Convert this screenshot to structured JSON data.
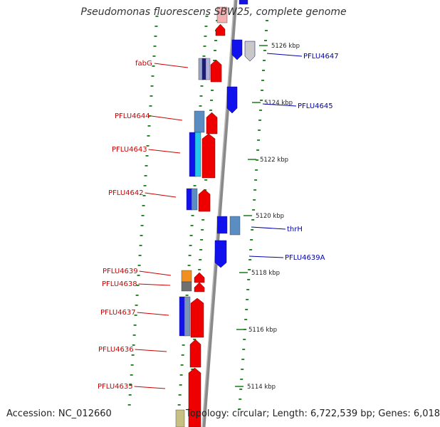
{
  "title": "Pseudomonas fluorescens SBW25, complete genome",
  "footer": {
    "accession_label": "Accession:",
    "accession": "NC_012660",
    "stats": "Topology: circular; Length: 6,722,539 bp; Genes: 6,018"
  },
  "colors": {
    "forward_gene": "#ee0000",
    "reverse_gene": "#1111ee",
    "left_label": "#cc0000",
    "right_label": "#0000aa",
    "dot_track": "#1a7a1a",
    "backbone": "#8a8a8a"
  },
  "ticks": [
    {
      "label": "5126 kbp"
    },
    {
      "label": "5124 kbp"
    },
    {
      "label": "5122 kbp"
    },
    {
      "label": "5120 kbp"
    },
    {
      "label": "5118 kbp"
    },
    {
      "label": "5116 kbp"
    },
    {
      "label": "5114 kbp"
    }
  ],
  "left_labels": [
    "fabG",
    "PFLU4644",
    "PFLU4643",
    "PFLU4642",
    "PFLU4639",
    "PFLU4638",
    "PFLU4637",
    "PFLU4636",
    "PFLU4635"
  ],
  "right_labels": [
    "PFLU4647",
    "PFLU4645",
    "thrH",
    "PFLU4639A"
  ]
}
